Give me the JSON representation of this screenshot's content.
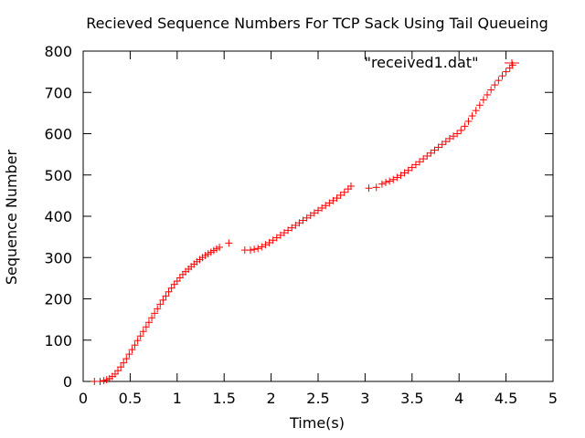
{
  "chart_data": {
    "type": "scatter",
    "title": "Recieved Sequence Numbers For TCP Sack Using Tail Queueing",
    "xlabel": "Time(s)",
    "ylabel": "Sequence Number",
    "xlim": [
      0,
      5
    ],
    "ylim": [
      0,
      800
    ],
    "x_ticks": [
      "0",
      "0.5",
      "1",
      "1.5",
      "2",
      "2.5",
      "3",
      "3.5",
      "4",
      "4.5",
      "5"
    ],
    "y_ticks": [
      "0",
      "100",
      "200",
      "300",
      "400",
      "500",
      "600",
      "700",
      "800"
    ],
    "grid": false,
    "legend_position": "top-right",
    "marker": "plus",
    "series": [
      {
        "name": "\"received1.dat\"",
        "color": "#ff0000",
        "points": [
          [
            0.12,
            0
          ],
          [
            0.18,
            0
          ],
          [
            0.22,
            2
          ],
          [
            0.25,
            4
          ],
          [
            0.28,
            7
          ],
          [
            0.31,
            12
          ],
          [
            0.34,
            18
          ],
          [
            0.37,
            26
          ],
          [
            0.4,
            35
          ],
          [
            0.43,
            45
          ],
          [
            0.46,
            55
          ],
          [
            0.49,
            66
          ],
          [
            0.52,
            77
          ],
          [
            0.55,
            88
          ],
          [
            0.58,
            99
          ],
          [
            0.61,
            110
          ],
          [
            0.64,
            121
          ],
          [
            0.67,
            132
          ],
          [
            0.7,
            143
          ],
          [
            0.73,
            154
          ],
          [
            0.76,
            165
          ],
          [
            0.79,
            176
          ],
          [
            0.82,
            187
          ],
          [
            0.85,
            197
          ],
          [
            0.88,
            207
          ],
          [
            0.91,
            217
          ],
          [
            0.94,
            226
          ],
          [
            0.97,
            235
          ],
          [
            1.0,
            243
          ],
          [
            1.03,
            251
          ],
          [
            1.06,
            259
          ],
          [
            1.09,
            266
          ],
          [
            1.12,
            272
          ],
          [
            1.15,
            278
          ],
          [
            1.18,
            284
          ],
          [
            1.21,
            290
          ],
          [
            1.24,
            295
          ],
          [
            1.27,
            300
          ],
          [
            1.3,
            305
          ],
          [
            1.33,
            309
          ],
          [
            1.36,
            313
          ],
          [
            1.39,
            317
          ],
          [
            1.42,
            321
          ],
          [
            1.45,
            325
          ],
          [
            1.55,
            335
          ],
          [
            1.72,
            318
          ],
          [
            1.78,
            318
          ],
          [
            1.82,
            320
          ],
          [
            1.86,
            322
          ],
          [
            1.9,
            326
          ],
          [
            1.94,
            331
          ],
          [
            1.98,
            336
          ],
          [
            2.02,
            342
          ],
          [
            2.06,
            348
          ],
          [
            2.1,
            354
          ],
          [
            2.14,
            360
          ],
          [
            2.18,
            366
          ],
          [
            2.22,
            372
          ],
          [
            2.26,
            378
          ],
          [
            2.3,
            384
          ],
          [
            2.34,
            390
          ],
          [
            2.38,
            396
          ],
          [
            2.42,
            402
          ],
          [
            2.46,
            408
          ],
          [
            2.5,
            414
          ],
          [
            2.54,
            420
          ],
          [
            2.58,
            426
          ],
          [
            2.62,
            432
          ],
          [
            2.66,
            438
          ],
          [
            2.7,
            444
          ],
          [
            2.74,
            451
          ],
          [
            2.78,
            458
          ],
          [
            2.82,
            466
          ],
          [
            2.85,
            473
          ],
          [
            3.04,
            468
          ],
          [
            3.12,
            470
          ],
          [
            3.18,
            478
          ],
          [
            3.22,
            482
          ],
          [
            3.26,
            485
          ],
          [
            3.3,
            489
          ],
          [
            3.34,
            494
          ],
          [
            3.38,
            499
          ],
          [
            3.42,
            505
          ],
          [
            3.46,
            511
          ],
          [
            3.5,
            518
          ],
          [
            3.54,
            525
          ],
          [
            3.58,
            532
          ],
          [
            3.62,
            539
          ],
          [
            3.66,
            546
          ],
          [
            3.7,
            553
          ],
          [
            3.74,
            560
          ],
          [
            3.78,
            567
          ],
          [
            3.82,
            574
          ],
          [
            3.86,
            581
          ],
          [
            3.9,
            588
          ],
          [
            3.94,
            594
          ],
          [
            3.98,
            600
          ],
          [
            4.02,
            608
          ],
          [
            4.06,
            618
          ],
          [
            4.1,
            630
          ],
          [
            4.14,
            643
          ],
          [
            4.18,
            656
          ],
          [
            4.22,
            669
          ],
          [
            4.26,
            682
          ],
          [
            4.3,
            694
          ],
          [
            4.34,
            706
          ],
          [
            4.38,
            718
          ],
          [
            4.42,
            729
          ],
          [
            4.46,
            740
          ],
          [
            4.5,
            750
          ],
          [
            4.54,
            759
          ],
          [
            4.57,
            766
          ]
        ]
      }
    ]
  }
}
